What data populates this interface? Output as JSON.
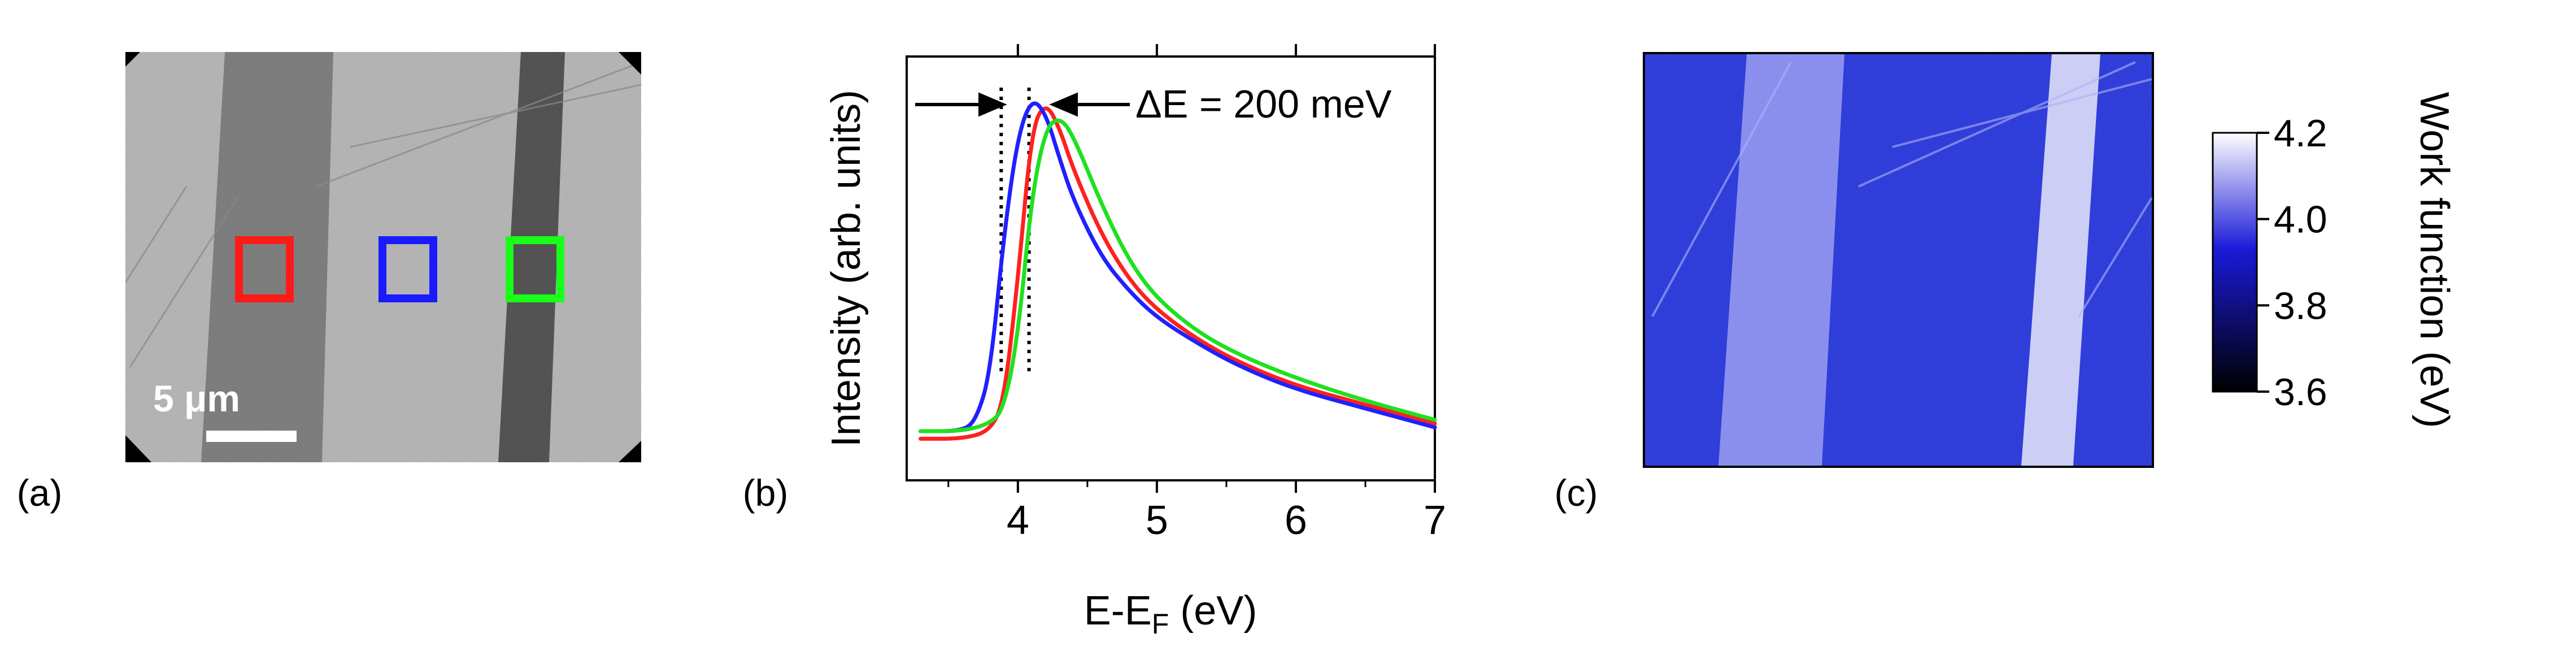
{
  "panels": {
    "a": {
      "label": "(a)",
      "scalebar": {
        "text_number": "5 ",
        "text_unit": "μm"
      },
      "roi_colors": [
        "#ff1a1a",
        "#1a1aff",
        "#1aff1a"
      ]
    },
    "b": {
      "label": "(b)",
      "annotation": "ΔE = 200 meV"
    },
    "c": {
      "label": "(c)",
      "colorbar": {
        "title": "Work function (eV)",
        "ticks": [
          "4.2",
          "4.0",
          "3.8",
          "3.6"
        ],
        "range": [
          3.6,
          4.2
        ],
        "color_low": "#000000",
        "color_mid": "#1a1ad8",
        "color_high": "#ffffff"
      },
      "map_color": "#1f2fd6"
    }
  },
  "chart_data": {
    "type": "line",
    "xlabel_main": "E-E",
    "xlabel_sub": "F",
    "xlabel_tail": " (eV)",
    "ylabel": "Intensity (arb. units)",
    "xlim": [
      3.2,
      7.0
    ],
    "ylim": [
      0,
      1.0
    ],
    "x_ticks": [
      4,
      5,
      6,
      7
    ],
    "x_tick_labels": [
      "4",
      "5",
      "6",
      "7"
    ],
    "dotted_lines_x": [
      3.88,
      4.08
    ],
    "series": [
      {
        "color": "#ff2020",
        "x": [
          3.3,
          3.6,
          3.8,
          3.9,
          4.0,
          4.1,
          4.2,
          4.3,
          4.4,
          4.6,
          4.8,
          5.0,
          5.3,
          5.6,
          6.0,
          6.5,
          7.0
        ],
        "y": [
          0.08,
          0.08,
          0.1,
          0.18,
          0.5,
          0.9,
          0.97,
          0.9,
          0.79,
          0.62,
          0.5,
          0.42,
          0.34,
          0.28,
          0.22,
          0.17,
          0.12
        ]
      },
      {
        "color": "#2020ff",
        "x": [
          3.3,
          3.6,
          3.7,
          3.8,
          3.9,
          4.0,
          4.1,
          4.2,
          4.3,
          4.4,
          4.6,
          4.8,
          5.0,
          5.3,
          5.6,
          6.0,
          6.5,
          7.0
        ],
        "y": [
          0.1,
          0.1,
          0.13,
          0.25,
          0.62,
          0.88,
          0.98,
          0.94,
          0.82,
          0.71,
          0.56,
          0.47,
          0.4,
          0.33,
          0.27,
          0.21,
          0.16,
          0.11
        ]
      },
      {
        "color": "#20e020",
        "x": [
          3.3,
          3.6,
          3.8,
          3.9,
          4.0,
          4.1,
          4.2,
          4.3,
          4.4,
          4.6,
          4.8,
          5.0,
          5.3,
          5.6,
          6.0,
          6.5,
          7.0
        ],
        "y": [
          0.1,
          0.1,
          0.12,
          0.16,
          0.35,
          0.72,
          0.9,
          0.93,
          0.88,
          0.7,
          0.55,
          0.45,
          0.36,
          0.3,
          0.24,
          0.18,
          0.13
        ]
      }
    ]
  }
}
